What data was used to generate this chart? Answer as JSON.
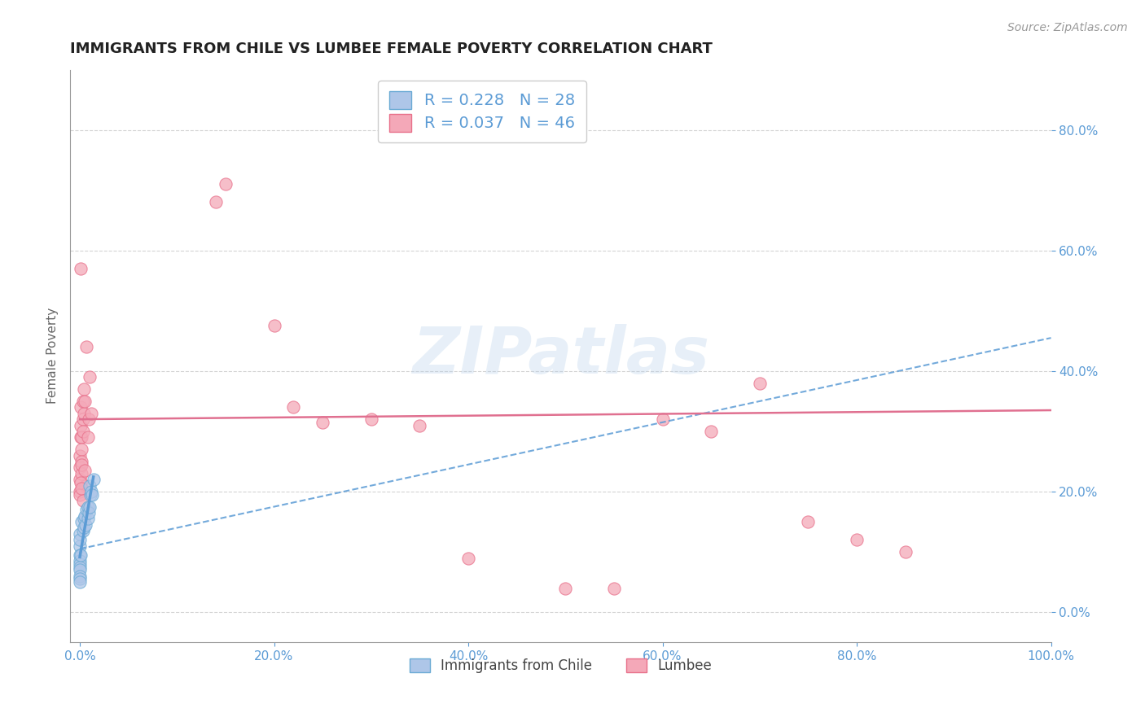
{
  "title": "IMMIGRANTS FROM CHILE VS LUMBEE FEMALE POVERTY CORRELATION CHART",
  "source": "Source: ZipAtlas.com",
  "xlabel": "",
  "ylabel": "Female Poverty",
  "xlim": [
    0.0,
    1.0
  ],
  "ylim": [
    0.0,
    0.9
  ],
  "xticks": [
    0.0,
    0.2,
    0.4,
    0.6,
    0.8,
    1.0
  ],
  "xticklabels": [
    "0.0%",
    "20.0%",
    "40.0%",
    "60.0%",
    "80.0%",
    "100.0%"
  ],
  "yticks": [
    0.0,
    0.2,
    0.4,
    0.6,
    0.8
  ],
  "yticklabels": [
    "0.0%",
    "20.0%",
    "40.0%",
    "60.0%",
    "80.0%"
  ],
  "legend1_label": "R = 0.228   N = 28",
  "legend2_label": "R = 0.037   N = 46",
  "legend_bottom_label1": "Immigrants from Chile",
  "legend_bottom_label2": "Lumbee",
  "blue_color": "#aec6e8",
  "pink_color": "#f4a8b8",
  "blue_edge_color": "#6aaad4",
  "pink_edge_color": "#e8708a",
  "trendline_blue_color": "#5b9bd5",
  "trendline_pink_color": "#e07090",
  "blue_scatter": [
    [
      0.0,
      0.13
    ],
    [
      0.0,
      0.11
    ],
    [
      0.0,
      0.095
    ],
    [
      0.0,
      0.12
    ],
    [
      0.0,
      0.085
    ],
    [
      0.0,
      0.08
    ],
    [
      0.0,
      0.075
    ],
    [
      0.0,
      0.07
    ],
    [
      0.002,
      0.15
    ],
    [
      0.003,
      0.135
    ],
    [
      0.004,
      0.155
    ],
    [
      0.004,
      0.14
    ],
    [
      0.005,
      0.16
    ],
    [
      0.006,
      0.145
    ],
    [
      0.007,
      0.17
    ],
    [
      0.008,
      0.155
    ],
    [
      0.008,
      0.175
    ],
    [
      0.009,
      0.165
    ],
    [
      0.01,
      0.175
    ],
    [
      0.01,
      0.21
    ],
    [
      0.011,
      0.195
    ],
    [
      0.012,
      0.2
    ],
    [
      0.013,
      0.195
    ],
    [
      0.014,
      0.22
    ],
    [
      0.0,
      0.06
    ],
    [
      0.0,
      0.055
    ],
    [
      0.0,
      0.05
    ],
    [
      0.001,
      0.095
    ]
  ],
  "pink_scatter": [
    [
      0.0,
      0.2
    ],
    [
      0.0,
      0.22
    ],
    [
      0.0,
      0.24
    ],
    [
      0.0,
      0.26
    ],
    [
      0.001,
      0.29
    ],
    [
      0.001,
      0.57
    ],
    [
      0.001,
      0.34
    ],
    [
      0.001,
      0.31
    ],
    [
      0.002,
      0.29
    ],
    [
      0.002,
      0.27
    ],
    [
      0.002,
      0.25
    ],
    [
      0.002,
      0.23
    ],
    [
      0.003,
      0.32
    ],
    [
      0.003,
      0.3
    ],
    [
      0.003,
      0.35
    ],
    [
      0.004,
      0.33
    ],
    [
      0.004,
      0.37
    ],
    [
      0.005,
      0.35
    ],
    [
      0.006,
      0.21
    ],
    [
      0.007,
      0.44
    ],
    [
      0.008,
      0.29
    ],
    [
      0.009,
      0.32
    ],
    [
      0.01,
      0.39
    ],
    [
      0.012,
      0.33
    ],
    [
      0.14,
      0.68
    ],
    [
      0.15,
      0.71
    ],
    [
      0.2,
      0.475
    ],
    [
      0.22,
      0.34
    ],
    [
      0.25,
      0.315
    ],
    [
      0.3,
      0.32
    ],
    [
      0.35,
      0.31
    ],
    [
      0.4,
      0.09
    ],
    [
      0.5,
      0.04
    ],
    [
      0.55,
      0.04
    ],
    [
      0.6,
      0.32
    ],
    [
      0.65,
      0.3
    ],
    [
      0.7,
      0.38
    ],
    [
      0.75,
      0.15
    ],
    [
      0.8,
      0.12
    ],
    [
      0.85,
      0.1
    ],
    [
      0.0,
      0.195
    ],
    [
      0.001,
      0.215
    ],
    [
      0.002,
      0.245
    ],
    [
      0.002,
      0.205
    ],
    [
      0.003,
      0.185
    ],
    [
      0.005,
      0.235
    ]
  ],
  "blue_trendline_y0": 0.105,
  "blue_trendline_y1": 0.455,
  "pink_trendline_y0": 0.32,
  "pink_trendline_y1": 0.335,
  "watermark_text": "ZIPatlas",
  "watermark_color": "#b0cce8",
  "watermark_alpha": 0.3
}
